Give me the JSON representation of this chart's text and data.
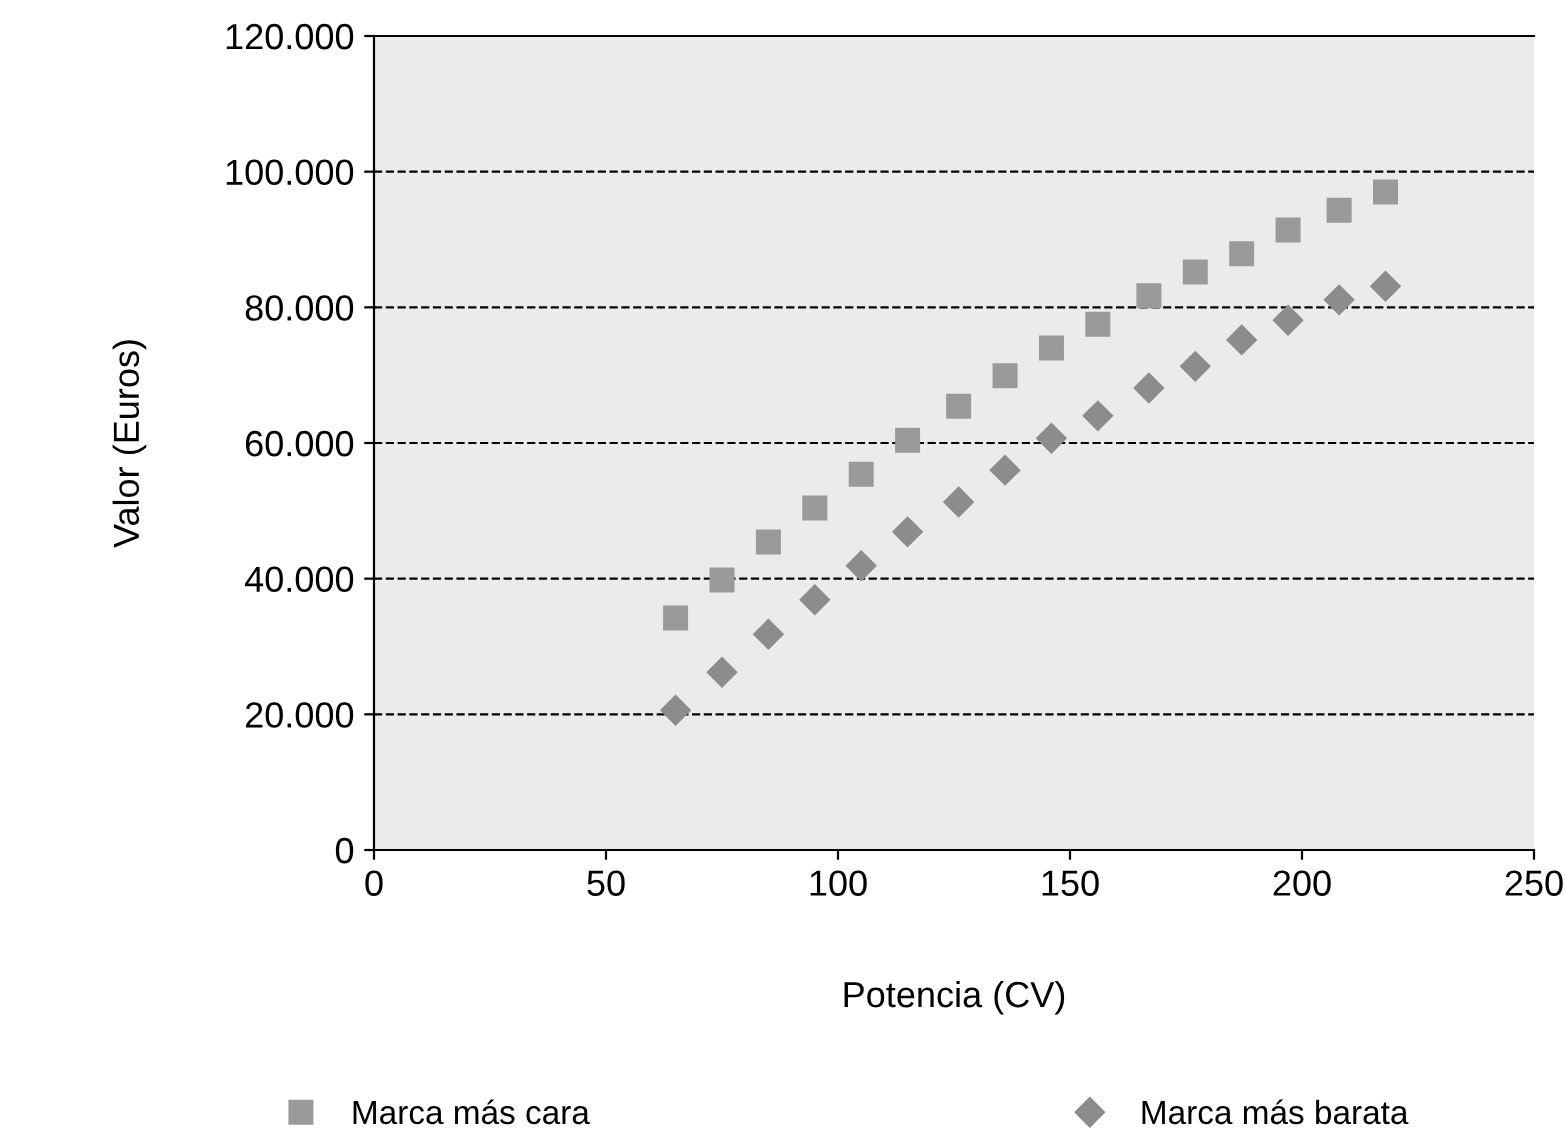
{
  "chart_data": {
    "type": "scatter",
    "xlabel": "Potencia (CV)",
    "ylabel": "Valor (Euros)",
    "xlim": [
      0,
      250
    ],
    "xticks": [
      0,
      50,
      100,
      150,
      200,
      250
    ],
    "ylim": [
      0,
      120000
    ],
    "yticks": [
      0,
      {
        "value": 20000,
        "label": "20.000"
      },
      {
        "value": 40000,
        "label": "40.000"
      },
      {
        "value": 60000,
        "label": "60.000"
      },
      {
        "value": 80000,
        "label": "80.000"
      },
      {
        "value": 100000,
        "label": "100.000"
      },
      {
        "value": 120000,
        "label": "120.000"
      }
    ],
    "grid": "y",
    "legend": "bottom",
    "series": [
      {
        "name": "Marca más cara",
        "color": "#9a9a9a",
        "marker": "square",
        "x": [
          65,
          75,
          85,
          95,
          105,
          115,
          126,
          136,
          146,
          156,
          167,
          177,
          187,
          197,
          208,
          218
        ],
        "values": [
          34200,
          39800,
          45400,
          50400,
          55400,
          60400,
          65400,
          69900,
          74000,
          77500,
          81700,
          85200,
          87900,
          91400,
          94300,
          97000
        ]
      },
      {
        "name": "Marca más barata",
        "color": "#8c8c8c",
        "marker": "diamond",
        "x": [
          65,
          75,
          85,
          95,
          105,
          115,
          126,
          136,
          146,
          156,
          167,
          177,
          187,
          197,
          208,
          218
        ],
        "values": [
          20600,
          26200,
          31800,
          36900,
          41900,
          46900,
          51300,
          56000,
          60700,
          64000,
          68100,
          71300,
          75200,
          78100,
          81100,
          83100
        ]
      }
    ]
  }
}
